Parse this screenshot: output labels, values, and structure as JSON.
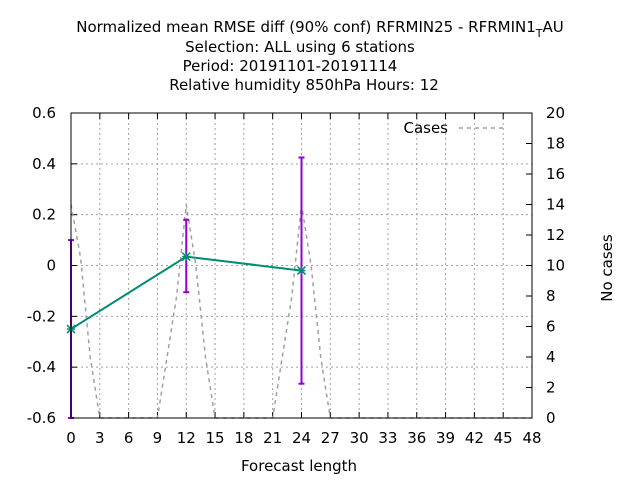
{
  "chart_data": {
    "type": "line",
    "title_lines": [
      "Normalized mean RMSE diff (90% conf) RFRMIN25 - RFRMIN1",
      "Selection: ALL using     6 stations",
      "Period: 20191101-20191114",
      "Relative humidity 850hPa   Hours:  12"
    ],
    "title_suffix_sub": "T",
    "title_suffix_rest": "AU",
    "xlabel": "Forecast length",
    "ylabel": "",
    "y2label": "No cases",
    "xlim": [
      0,
      48
    ],
    "ylim": [
      -0.6,
      0.6
    ],
    "y2lim": [
      0,
      20
    ],
    "x_ticks": [
      "0",
      "3",
      "6",
      "9",
      "12",
      "15",
      "18",
      "21",
      "24",
      "27",
      "30",
      "33",
      "36",
      "39",
      "42",
      "45",
      "48"
    ],
    "y_ticks": [
      "-0.6",
      "-0.4",
      "-0.2",
      "0",
      "0.2",
      "0.4",
      "0.6"
    ],
    "y2_ticks": [
      "0",
      "2",
      "4",
      "6",
      "8",
      "10",
      "12",
      "14",
      "16",
      "18",
      "20"
    ],
    "grid": true,
    "legend_position": "top-right",
    "series": [
      {
        "name": "",
        "color": "#008b73",
        "axis": "left",
        "x": [
          0,
          12,
          24
        ],
        "values": [
          -0.25,
          0.035,
          -0.02
        ],
        "err_low": [
          -0.6,
          -0.105,
          -0.465
        ],
        "err_high": [
          0.1,
          0.18,
          0.425
        ],
        "errorbar_color": "#9400d3"
      },
      {
        "name": "Cases",
        "color": "#a0a0a0",
        "axis": "right",
        "style": "dashed",
        "x": [
          0,
          1,
          2,
          3,
          4,
          5,
          6,
          7,
          8,
          9,
          10,
          11,
          12,
          13,
          14,
          15,
          16,
          17,
          18,
          19,
          20,
          21,
          22,
          23,
          24,
          25,
          26,
          27,
          28,
          29,
          30,
          48
        ],
        "values": [
          14,
          10.5,
          4,
          0,
          0,
          0,
          0,
          0,
          0,
          0,
          4,
          8,
          14,
          10,
          4,
          0,
          0,
          0,
          0,
          0,
          0,
          0,
          4,
          8,
          14,
          10,
          4,
          0,
          0,
          0,
          0,
          0
        ]
      }
    ]
  }
}
